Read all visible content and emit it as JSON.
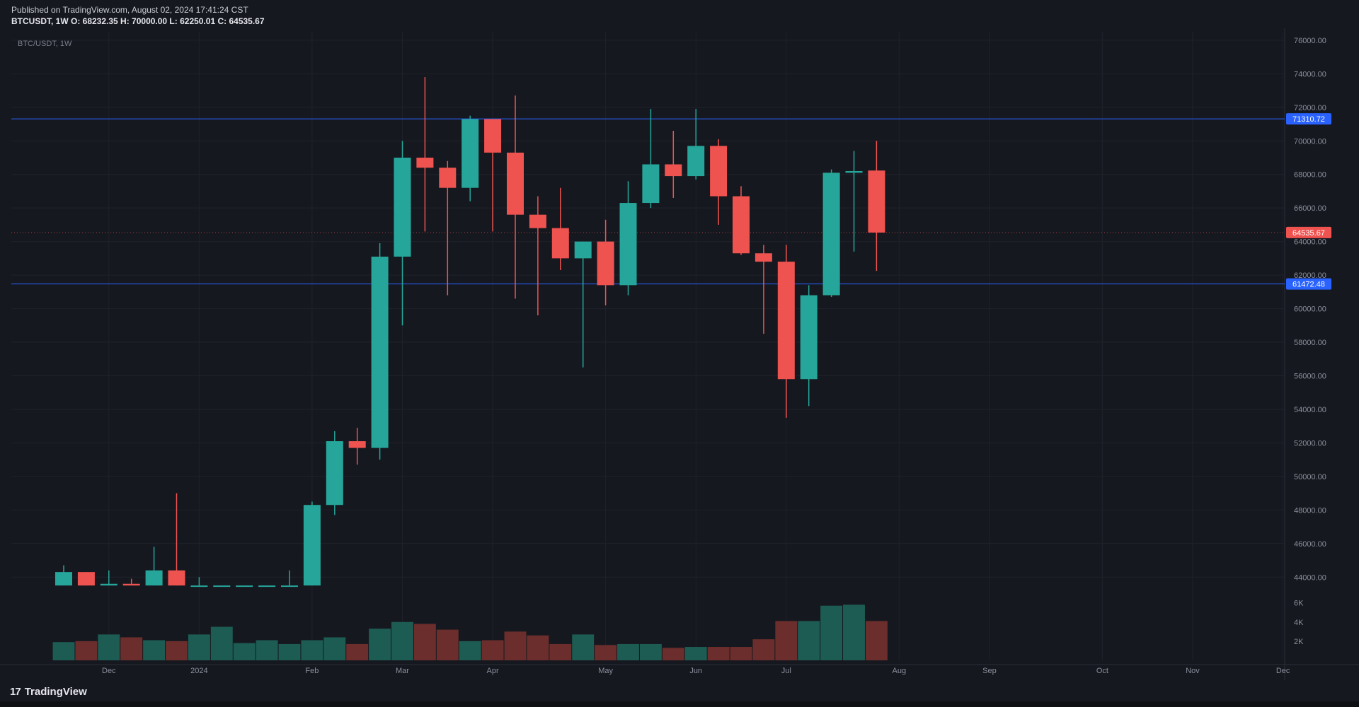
{
  "header": {
    "published": "Published on TradingView.com, August 02, 2024 17:41:24 CST",
    "ohlc": "BTCUSDT, 1W  O: 68232.35 H: 70000.00 L: 62250.01 C: 64535.67"
  },
  "footer": {
    "brand": "TradingView",
    "logo": "17"
  },
  "colors": {
    "background": "#16181f",
    "up": "#26a69a",
    "down": "#ef5350",
    "up_volume": "#1d5c53",
    "down_volume": "#6b2e2c",
    "level_line": "#2962ff",
    "grid": "#1f222b",
    "axis_text": "#8a8f9c"
  },
  "chart_data": {
    "type": "candlestick",
    "title": "BTC/USDT, 1W",
    "ylim": [
      43000,
      76500
    ],
    "y_ticks": [
      44000,
      46000,
      48000,
      50000,
      52000,
      54000,
      56000,
      58000,
      60000,
      62000,
      64000,
      66000,
      68000,
      70000,
      72000,
      74000,
      76000
    ],
    "y_tick_labels": [
      "44000.00",
      "46000.00",
      "48000.00",
      "50000.00",
      "52000.00",
      "54000.00",
      "56000.00",
      "58000.00",
      "60000.00",
      "62000.00",
      "64000.00",
      "66000.00",
      "68000.00",
      "70000.00",
      "72000.00",
      "74000.00",
      "76000.00"
    ],
    "x_labels": [
      {
        "label": "Dec",
        "index": 2
      },
      {
        "label": "2024",
        "index": 6
      },
      {
        "label": "Feb",
        "index": 11
      },
      {
        "label": "Mar",
        "index": 15
      },
      {
        "label": "Apr",
        "index": 19
      },
      {
        "label": "May",
        "index": 24
      },
      {
        "label": "Jun",
        "index": 28
      },
      {
        "label": "Jul",
        "index": 32
      },
      {
        "label": "Aug",
        "index": 37
      },
      {
        "label": "Sep",
        "index": 41
      },
      {
        "label": "Oct",
        "index": 46
      },
      {
        "label": "Nov",
        "index": 50
      },
      {
        "label": "Dec",
        "index": 54
      }
    ],
    "total_slots": 57,
    "candles": [
      {
        "o": 43500,
        "h": 44700,
        "l": 43500,
        "c": 44300
      },
      {
        "o": 44300,
        "h": 44300,
        "l": 43500,
        "c": 43500
      },
      {
        "o": 43500,
        "h": 44400,
        "l": 43500,
        "c": 43600
      },
      {
        "o": 43600,
        "h": 43900,
        "l": 43500,
        "c": 43500
      },
      {
        "o": 43500,
        "h": 45800,
        "l": 43500,
        "c": 44400
      },
      {
        "o": 44400,
        "h": 49000,
        "l": 43500,
        "c": 43500
      },
      {
        "o": 43500,
        "h": 44000,
        "l": 43500,
        "c": 43500
      },
      {
        "o": 43500,
        "h": 43500,
        "l": 43500,
        "c": 43500
      },
      {
        "o": 43500,
        "h": 43500,
        "l": 43500,
        "c": 43500
      },
      {
        "o": 43500,
        "h": 43500,
        "l": 43500,
        "c": 43500
      },
      {
        "o": 43500,
        "h": 44400,
        "l": 43500,
        "c": 43500
      },
      {
        "o": 43500,
        "h": 48500,
        "l": 43500,
        "c": 48300
      },
      {
        "o": 48300,
        "h": 52700,
        "l": 47700,
        "c": 52100
      },
      {
        "o": 52100,
        "h": 52900,
        "l": 50700,
        "c": 51700
      },
      {
        "o": 51700,
        "h": 63900,
        "l": 51000,
        "c": 63100
      },
      {
        "o": 63100,
        "h": 70000,
        "l": 59000,
        "c": 69000
      },
      {
        "o": 69000,
        "h": 73800,
        "l": 64600,
        "c": 68400
      },
      {
        "o": 68400,
        "h": 68800,
        "l": 60800,
        "c": 67200
      },
      {
        "o": 67200,
        "h": 71500,
        "l": 66400,
        "c": 71300
      },
      {
        "o": 71300,
        "h": 71300,
        "l": 64600,
        "c": 69300
      },
      {
        "o": 69300,
        "h": 72700,
        "l": 60600,
        "c": 65600
      },
      {
        "o": 65600,
        "h": 66700,
        "l": 59600,
        "c": 64800
      },
      {
        "o": 64800,
        "h": 67200,
        "l": 62300,
        "c": 63000
      },
      {
        "o": 63000,
        "h": 64000,
        "l": 56500,
        "c": 64000
      },
      {
        "o": 64000,
        "h": 65300,
        "l": 60200,
        "c": 61400
      },
      {
        "o": 61400,
        "h": 67600,
        "l": 60800,
        "c": 66300
      },
      {
        "o": 66300,
        "h": 71900,
        "l": 66000,
        "c": 68600
      },
      {
        "o": 68600,
        "h": 70600,
        "l": 66600,
        "c": 67900
      },
      {
        "o": 67900,
        "h": 71900,
        "l": 67700,
        "c": 69700
      },
      {
        "o": 69700,
        "h": 70100,
        "l": 65000,
        "c": 66700
      },
      {
        "o": 66700,
        "h": 67300,
        "l": 63200,
        "c": 63300
      },
      {
        "o": 63300,
        "h": 63800,
        "l": 58500,
        "c": 62800
      },
      {
        "o": 62800,
        "h": 63800,
        "l": 53500,
        "c": 55800
      },
      {
        "o": 55800,
        "h": 61400,
        "l": 54200,
        "c": 60800
      },
      {
        "o": 60800,
        "h": 68300,
        "l": 60700,
        "c": 68100
      },
      {
        "o": 68100,
        "h": 69400,
        "l": 63400,
        "c": 68200
      },
      {
        "o": 68232.35,
        "h": 70000.0,
        "l": 62250.01,
        "c": 64535.67
      }
    ],
    "volume": {
      "ylim": [
        0,
        7300
      ],
      "ticks": [
        2000,
        4000,
        6000
      ],
      "tick_labels": [
        "2K",
        "4K",
        "6K"
      ],
      "values": [
        1900,
        2000,
        2700,
        2400,
        2100,
        2000,
        2700,
        3500,
        1800,
        2100,
        1700,
        2100,
        2400,
        1700,
        3300,
        4000,
        3800,
        3200,
        2000,
        2100,
        3000,
        2600,
        1700,
        2700,
        1600,
        1700,
        1700,
        1300,
        1400,
        1400,
        1400,
        2200,
        4100,
        4100,
        5700,
        5800,
        4100
      ]
    },
    "levels": [
      {
        "value": 71310.72,
        "label": "71310.72",
        "color": "#2962ff"
      },
      {
        "value": 61472.48,
        "label": "61472.48",
        "color": "#2962ff"
      }
    ],
    "last_price": {
      "value": 64535.67,
      "label": "64535.67",
      "color": "#ef5350"
    }
  }
}
